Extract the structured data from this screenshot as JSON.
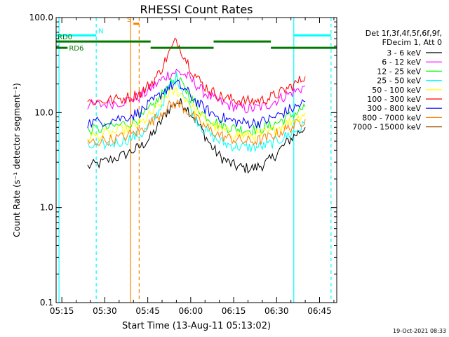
{
  "chart_data": {
    "type": "line",
    "title": "RHESSI Count Rates",
    "xlabel": "Start Time (13-Aug-11 05:13:02)",
    "ylabel": "Count Rate (s⁻¹ detector segment⁻¹)",
    "ylog": true,
    "ylim": [
      0.1,
      100.0
    ],
    "xlim_minutes": [
      "05:13",
      "06:51"
    ],
    "x_ticks": [
      "05:15",
      "05:30",
      "05:45",
      "06:00",
      "06:15",
      "06:30",
      "06:45"
    ],
    "y_ticks": [
      "0.1",
      "1.0",
      "10.0",
      "100.0"
    ],
    "grid": false,
    "legend_placement": "right",
    "legend_header": [
      "Det 1f,3f,4f,5f,6f,9f,",
      "FDecim 1, Att 0"
    ],
    "timestamp": "19-Oct-2021 08:33",
    "x_times": [
      "05:24",
      "05:28",
      "05:32",
      "05:36",
      "05:40",
      "05:43",
      "05:46",
      "05:49",
      "05:52",
      "05:55",
      "05:58",
      "06:01",
      "06:04",
      "06:07",
      "06:10",
      "06:13",
      "06:16",
      "06:19",
      "06:22",
      "06:25",
      "06:28",
      "06:31",
      "06:34",
      "06:37",
      "06:40"
    ],
    "series": [
      {
        "name": "3 - 6 keV",
        "color": "#000000",
        "values": [
          2.7,
          2.9,
          3.2,
          3.5,
          4.0,
          4.5,
          5.5,
          7.5,
          10.5,
          13.0,
          12.0,
          9.0,
          6.5,
          4.5,
          3.5,
          3.0,
          2.7,
          2.6,
          2.6,
          2.8,
          3.2,
          4.0,
          5.0,
          6.0,
          7.0
        ]
      },
      {
        "name": "6 - 12 keV",
        "color": "#ff00ff",
        "values": [
          12.0,
          12.0,
          12.5,
          13.0,
          14.0,
          15.0,
          18.0,
          21.0,
          25.0,
          27.0,
          25.0,
          21.0,
          17.0,
          14.5,
          13.0,
          12.0,
          11.5,
          11.0,
          11.0,
          11.5,
          12.5,
          14.0,
          15.5,
          17.0,
          19.0
        ]
      },
      {
        "name": "12 - 25 keV",
        "color": "#00ff00",
        "values": [
          6.5,
          6.7,
          7.0,
          7.5,
          8.0,
          9.0,
          11.0,
          14.0,
          19.0,
          23.0,
          18.0,
          13.0,
          10.0,
          8.5,
          7.5,
          7.0,
          6.8,
          6.6,
          6.6,
          6.8,
          7.3,
          8.0,
          9.0,
          10.0,
          11.5
        ]
      },
      {
        "name": "25 - 50 keV",
        "color": "#00ffff",
        "values": [
          4.3,
          4.5,
          4.7,
          5.0,
          5.5,
          6.0,
          7.5,
          10.5,
          17.0,
          24.0,
          15.0,
          9.5,
          7.0,
          5.8,
          5.0,
          4.6,
          4.4,
          4.3,
          4.3,
          4.4,
          4.7,
          5.2,
          5.8,
          6.5,
          7.5
        ]
      },
      {
        "name": "50 - 100 keV",
        "color": "#ffff00",
        "values": [
          5.5,
          5.7,
          6.0,
          6.5,
          7.0,
          7.8,
          9.5,
          12.0,
          15.5,
          17.0,
          14.5,
          11.0,
          8.8,
          7.5,
          6.7,
          6.2,
          5.9,
          5.7,
          5.7,
          5.9,
          6.3,
          7.0,
          7.8,
          8.7,
          10.0
        ]
      },
      {
        "name": "100 - 300 keV",
        "color": "#ff0000",
        "values": [
          13.0,
          13.2,
          13.5,
          14.0,
          15.0,
          16.5,
          20.0,
          26.0,
          40.0,
          58.0,
          38.0,
          26.0,
          20.0,
          17.0,
          15.0,
          14.0,
          13.5,
          13.2,
          13.2,
          13.5,
          14.5,
          16.0,
          18.0,
          20.5,
          24.0
        ]
      },
      {
        "name": "300 - 800 keV",
        "color": "#0000ff",
        "values": [
          7.8,
          8.0,
          8.4,
          8.8,
          9.5,
          10.5,
          12.5,
          15.0,
          18.5,
          20.0,
          17.5,
          14.0,
          11.5,
          10.0,
          9.0,
          8.4,
          8.0,
          7.8,
          7.8,
          8.0,
          8.6,
          9.5,
          10.5,
          11.5,
          13.0
        ]
      },
      {
        "name": "800 - 7000 keV",
        "color": "#ff8000",
        "values": [
          4.8,
          5.0,
          5.2,
          5.5,
          6.0,
          6.6,
          7.8,
          9.5,
          11.5,
          12.5,
          11.0,
          9.0,
          7.5,
          6.5,
          5.8,
          5.4,
          5.2,
          5.0,
          5.0,
          5.2,
          5.6,
          6.2,
          6.8,
          7.5,
          8.5
        ]
      },
      {
        "name": "7000 - 15000 keV",
        "color": "#a05000",
        "values": []
      }
    ],
    "annotations": [
      {
        "label": "N",
        "color": "#00ffff",
        "level": 65,
        "segments": [
          [
            "05:13",
            "05:27"
          ],
          [
            "06:36",
            "06:49"
          ]
        ]
      },
      {
        "label": "S",
        "color": "#ff8000",
        "level": 86,
        "segments": [
          [
            "05:40",
            "05:42"
          ]
        ]
      },
      {
        "label": "RD0",
        "color": "#007a00",
        "level": 56,
        "segments": [
          [
            "05:13",
            "05:46"
          ],
          [
            "06:08",
            "06:28"
          ]
        ]
      },
      {
        "label": "RD6",
        "color": "#007a00",
        "level": 48,
        "segments": [
          [
            "05:13",
            "05:17"
          ],
          [
            "05:46",
            "06:08"
          ],
          [
            "06:28",
            "06:51"
          ]
        ]
      }
    ],
    "vlines": [
      {
        "time": "05:14",
        "color": "#00ffff",
        "style": "solid"
      },
      {
        "time": "05:27",
        "color": "#00ffff",
        "style": "dashed"
      },
      {
        "time": "05:39",
        "color": "#ff8000",
        "style": "solid"
      },
      {
        "time": "05:42",
        "color": "#ff8000",
        "style": "dashed"
      },
      {
        "time": "06:36",
        "color": "#00ffff",
        "style": "solid"
      },
      {
        "time": "06:49",
        "color": "#00ffff",
        "style": "dashed"
      }
    ]
  }
}
